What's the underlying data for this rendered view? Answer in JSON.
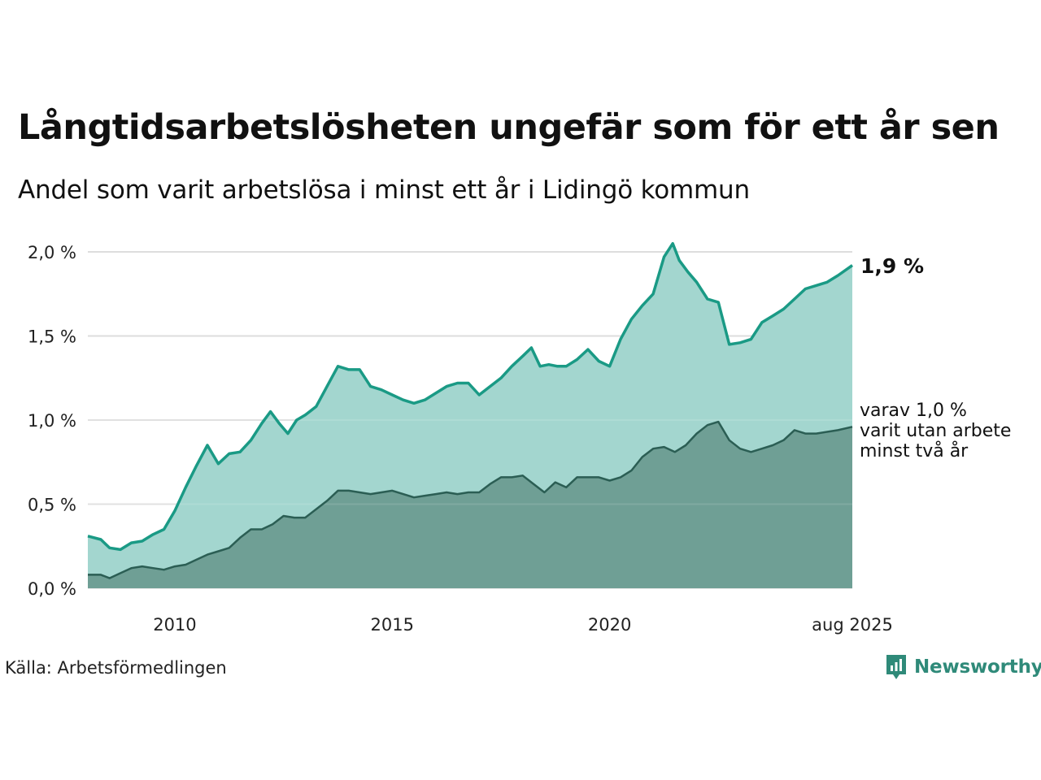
{
  "header": {
    "title": "Långtidsarbetslösheten ungefär som för ett år sen",
    "subtitle": "Andel som varit arbetslösa i minst ett år i Lidingö kommun"
  },
  "footer": {
    "source": "Källa: Arbetsförmedlingen",
    "brand": "Newsworthy"
  },
  "colors": {
    "series1_line": "#1a9a85",
    "series1_fill": "#a3d6cf",
    "series2_line": "#2b5e54",
    "series2_fill": "#6f9f95",
    "grid": "#dddddd"
  },
  "chart_data": {
    "type": "area",
    "ylim": [
      0,
      2.0
    ],
    "yticks": [
      0,
      0.5,
      1.0,
      1.5,
      2.0
    ],
    "ytick_labels": [
      "0,0 %",
      "0,5 %",
      "1,0 %",
      "1,5 %",
      "2,0 %"
    ],
    "xlim": [
      2008.0,
      2025.58
    ],
    "xticks": [
      2010,
      2015,
      2020,
      2025.58
    ],
    "xtick_labels": [
      "2010",
      "2015",
      "2020",
      "aug 2025"
    ],
    "grid": true,
    "series": [
      {
        "values": [
          [
            2008.0,
            0.31
          ],
          [
            2008.3,
            0.29
          ],
          [
            2008.5,
            0.24
          ],
          [
            2008.75,
            0.23
          ],
          [
            2009.0,
            0.27
          ],
          [
            2009.25,
            0.28
          ],
          [
            2009.5,
            0.32
          ],
          [
            2009.75,
            0.35
          ],
          [
            2010.0,
            0.46
          ],
          [
            2010.25,
            0.6
          ],
          [
            2010.5,
            0.73
          ],
          [
            2010.75,
            0.85
          ],
          [
            2011.0,
            0.74
          ],
          [
            2011.25,
            0.8
          ],
          [
            2011.5,
            0.81
          ],
          [
            2011.75,
            0.88
          ],
          [
            2012.0,
            0.98
          ],
          [
            2012.2,
            1.05
          ],
          [
            2012.4,
            0.98
          ],
          [
            2012.6,
            0.92
          ],
          [
            2012.8,
            1.0
          ],
          [
            2013.0,
            1.03
          ],
          [
            2013.25,
            1.08
          ],
          [
            2013.5,
            1.2
          ],
          [
            2013.75,
            1.32
          ],
          [
            2014.0,
            1.3
          ],
          [
            2014.25,
            1.3
          ],
          [
            2014.5,
            1.2
          ],
          [
            2014.75,
            1.18
          ],
          [
            2015.0,
            1.15
          ],
          [
            2015.25,
            1.12
          ],
          [
            2015.5,
            1.1
          ],
          [
            2015.75,
            1.12
          ],
          [
            2016.0,
            1.16
          ],
          [
            2016.25,
            1.2
          ],
          [
            2016.5,
            1.22
          ],
          [
            2016.75,
            1.22
          ],
          [
            2017.0,
            1.15
          ],
          [
            2017.25,
            1.2
          ],
          [
            2017.5,
            1.25
          ],
          [
            2017.75,
            1.32
          ],
          [
            2018.0,
            1.38
          ],
          [
            2018.2,
            1.43
          ],
          [
            2018.4,
            1.32
          ],
          [
            2018.6,
            1.33
          ],
          [
            2018.8,
            1.32
          ],
          [
            2019.0,
            1.32
          ],
          [
            2019.25,
            1.36
          ],
          [
            2019.5,
            1.42
          ],
          [
            2019.75,
            1.35
          ],
          [
            2020.0,
            1.32
          ],
          [
            2020.25,
            1.48
          ],
          [
            2020.5,
            1.6
          ],
          [
            2020.75,
            1.68
          ],
          [
            2021.0,
            1.75
          ],
          [
            2021.25,
            1.97
          ],
          [
            2021.45,
            2.05
          ],
          [
            2021.6,
            1.95
          ],
          [
            2021.8,
            1.88
          ],
          [
            2022.0,
            1.82
          ],
          [
            2022.25,
            1.72
          ],
          [
            2022.5,
            1.7
          ],
          [
            2022.75,
            1.45
          ],
          [
            2023.0,
            1.46
          ],
          [
            2023.25,
            1.48
          ],
          [
            2023.5,
            1.58
          ],
          [
            2023.75,
            1.62
          ],
          [
            2024.0,
            1.66
          ],
          [
            2024.25,
            1.72
          ],
          [
            2024.5,
            1.78
          ],
          [
            2024.75,
            1.8
          ],
          [
            2025.0,
            1.82
          ],
          [
            2025.25,
            1.86
          ],
          [
            2025.58,
            1.92
          ]
        ]
      },
      {
        "values": [
          [
            2008.0,
            0.08
          ],
          [
            2008.3,
            0.08
          ],
          [
            2008.5,
            0.06
          ],
          [
            2008.75,
            0.09
          ],
          [
            2009.0,
            0.12
          ],
          [
            2009.25,
            0.13
          ],
          [
            2009.5,
            0.12
          ],
          [
            2009.75,
            0.11
          ],
          [
            2010.0,
            0.13
          ],
          [
            2010.25,
            0.14
          ],
          [
            2010.5,
            0.17
          ],
          [
            2010.75,
            0.2
          ],
          [
            2011.0,
            0.22
          ],
          [
            2011.25,
            0.24
          ],
          [
            2011.5,
            0.3
          ],
          [
            2011.75,
            0.35
          ],
          [
            2012.0,
            0.35
          ],
          [
            2012.25,
            0.38
          ],
          [
            2012.5,
            0.43
          ],
          [
            2012.75,
            0.42
          ],
          [
            2013.0,
            0.42
          ],
          [
            2013.25,
            0.47
          ],
          [
            2013.5,
            0.52
          ],
          [
            2013.75,
            0.58
          ],
          [
            2014.0,
            0.58
          ],
          [
            2014.25,
            0.57
          ],
          [
            2014.5,
            0.56
          ],
          [
            2014.75,
            0.57
          ],
          [
            2015.0,
            0.58
          ],
          [
            2015.25,
            0.56
          ],
          [
            2015.5,
            0.54
          ],
          [
            2015.75,
            0.55
          ],
          [
            2016.0,
            0.56
          ],
          [
            2016.25,
            0.57
          ],
          [
            2016.5,
            0.56
          ],
          [
            2016.75,
            0.57
          ],
          [
            2017.0,
            0.57
          ],
          [
            2017.25,
            0.62
          ],
          [
            2017.5,
            0.66
          ],
          [
            2017.75,
            0.66
          ],
          [
            2018.0,
            0.67
          ],
          [
            2018.25,
            0.62
          ],
          [
            2018.5,
            0.57
          ],
          [
            2018.75,
            0.63
          ],
          [
            2019.0,
            0.6
          ],
          [
            2019.25,
            0.66
          ],
          [
            2019.5,
            0.66
          ],
          [
            2019.75,
            0.66
          ],
          [
            2020.0,
            0.64
          ],
          [
            2020.25,
            0.66
          ],
          [
            2020.5,
            0.7
          ],
          [
            2020.75,
            0.78
          ],
          [
            2021.0,
            0.83
          ],
          [
            2021.25,
            0.84
          ],
          [
            2021.5,
            0.81
          ],
          [
            2021.75,
            0.85
          ],
          [
            2022.0,
            0.92
          ],
          [
            2022.25,
            0.97
          ],
          [
            2022.5,
            0.99
          ],
          [
            2022.75,
            0.88
          ],
          [
            2023.0,
            0.83
          ],
          [
            2023.25,
            0.81
          ],
          [
            2023.5,
            0.83
          ],
          [
            2023.75,
            0.85
          ],
          [
            2024.0,
            0.88
          ],
          [
            2024.25,
            0.94
          ],
          [
            2024.5,
            0.92
          ],
          [
            2024.75,
            0.92
          ],
          [
            2025.0,
            0.93
          ],
          [
            2025.25,
            0.94
          ],
          [
            2025.58,
            0.96
          ]
        ]
      }
    ],
    "annotations": {
      "series1_end_label": "1,9 %",
      "series2_end_label_lines": [
        "varav 1,0 %",
        "varit utan arbete",
        "minst två år"
      ]
    }
  }
}
